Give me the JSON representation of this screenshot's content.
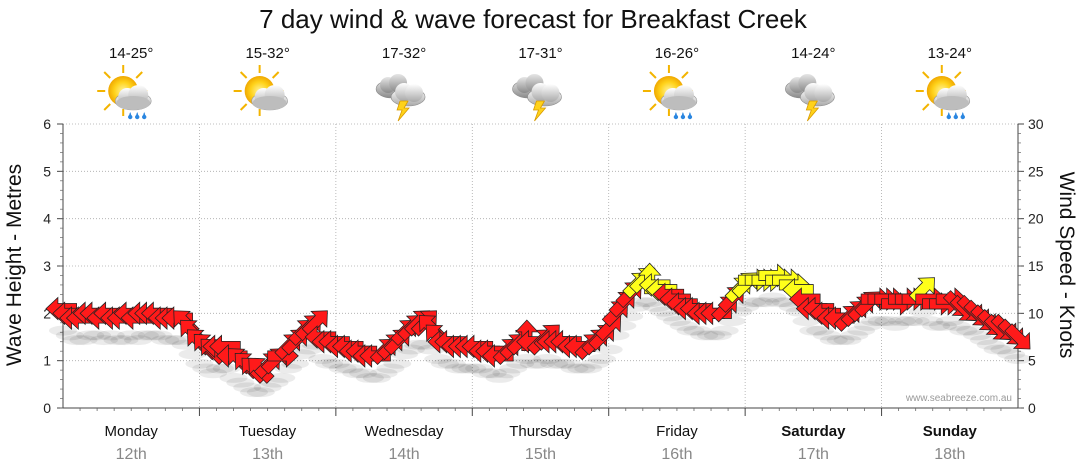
{
  "title": "7 day wind & wave forecast for Breakfast Creek",
  "credit": "www.seabreeze.com.au",
  "colors": {
    "arrow_low": "#ff1a1a",
    "arrow_high": "#ffff1a",
    "grid": "#aaaaaa",
    "date_text": "#888888"
  },
  "days": [
    {
      "name": "Monday",
      "date": "12th",
      "temp": "14-25°",
      "icon": "sun-cloud-rain-icon",
      "bold": false
    },
    {
      "name": "Tuesday",
      "date": "13th",
      "temp": "15-32°",
      "icon": "sun-cloud-icon",
      "bold": false
    },
    {
      "name": "Wednesday",
      "date": "14th",
      "temp": "17-32°",
      "icon": "thunderstorm-icon",
      "bold": false
    },
    {
      "name": "Thursday",
      "date": "15th",
      "temp": "17-31°",
      "icon": "thunderstorm-icon",
      "bold": false
    },
    {
      "name": "Friday",
      "date": "16th",
      "temp": "16-26°",
      "icon": "sun-cloud-rain-icon",
      "bold": false
    },
    {
      "name": "Saturday",
      "date": "17th",
      "temp": "14-24°",
      "icon": "thunderstorm-icon",
      "bold": true
    },
    {
      "name": "Sunday",
      "date": "18th",
      "temp": "13-24°",
      "icon": "sun-cloud-rain-icon",
      "bold": true
    }
  ],
  "chart_data": {
    "type": "line",
    "title": "7 day wind & wave forecast for Breakfast Creek",
    "left_axis": {
      "label": "Wave Height - Metres",
      "range": [
        0,
        6
      ],
      "ticks": [
        0,
        1,
        2,
        3,
        4,
        5,
        6
      ]
    },
    "right_axis": {
      "label": "Wind Speed - Knots",
      "range": [
        0,
        30
      ],
      "ticks": [
        0,
        5,
        10,
        15,
        20,
        25,
        30
      ]
    },
    "x_categories": [
      "Monday 12th",
      "Tuesday 13th",
      "Wednesday 14th",
      "Thursday 15th",
      "Friday 16th",
      "Saturday 17th",
      "Sunday 18th"
    ],
    "grid": true,
    "series": [
      {
        "encoding": "wind arrows: position = wind speed (knots, right axis), arrow = direction, colour = strength",
        "points": [
          {
            "day": 0.0,
            "knots": 10.5,
            "toward": "W"
          },
          {
            "day": 0.05,
            "knots": 10.0,
            "toward": "W"
          },
          {
            "day": 0.1,
            "knots": 9.5,
            "toward": "W"
          },
          {
            "day": 0.15,
            "knots": 9.5,
            "toward": "W"
          },
          {
            "day": 0.2,
            "knots": 10.0,
            "toward": "W"
          },
          {
            "day": 0.25,
            "knots": 10.0,
            "toward": "W"
          },
          {
            "day": 0.3,
            "knots": 9.5,
            "toward": "W"
          },
          {
            "day": 0.35,
            "knots": 10.0,
            "toward": "W"
          },
          {
            "day": 0.4,
            "knots": 9.5,
            "toward": "W"
          },
          {
            "day": 0.45,
            "knots": 9.5,
            "toward": "W"
          },
          {
            "day": 0.5,
            "knots": 10.0,
            "toward": "W"
          },
          {
            "day": 0.55,
            "knots": 9.5,
            "toward": "W"
          },
          {
            "day": 0.6,
            "knots": 10.0,
            "toward": "W"
          },
          {
            "day": 0.65,
            "knots": 10.0,
            "toward": "W"
          },
          {
            "day": 0.7,
            "knots": 10.0,
            "toward": "W"
          },
          {
            "day": 0.75,
            "knots": 9.5,
            "toward": "W"
          },
          {
            "day": 0.8,
            "knots": 9.5,
            "toward": "W"
          },
          {
            "day": 0.85,
            "knots": 9.5,
            "toward": "W"
          },
          {
            "day": 0.9,
            "knots": 9.0,
            "toward": "NW"
          },
          {
            "day": 0.95,
            "knots": 8.0,
            "toward": "NW"
          },
          {
            "day": 1.0,
            "knots": 7.0,
            "toward": "NW"
          },
          {
            "day": 1.05,
            "knots": 6.5,
            "toward": "NW"
          },
          {
            "day": 1.1,
            "knots": 6.0,
            "toward": "NW"
          },
          {
            "day": 1.15,
            "knots": 6.5,
            "toward": "W"
          },
          {
            "day": 1.2,
            "knots": 6.5,
            "toward": "W"
          },
          {
            "day": 1.25,
            "knots": 5.5,
            "toward": "W"
          },
          {
            "day": 1.3,
            "knots": 5.0,
            "toward": "NW"
          },
          {
            "day": 1.35,
            "knots": 4.5,
            "toward": "NW"
          },
          {
            "day": 1.4,
            "knots": 4.0,
            "toward": "NW"
          },
          {
            "day": 1.45,
            "knots": 4.0,
            "toward": "NW"
          },
          {
            "day": 1.5,
            "knots": 4.5,
            "toward": "NE"
          },
          {
            "day": 1.55,
            "knots": 5.0,
            "toward": "NE"
          },
          {
            "day": 1.6,
            "knots": 5.5,
            "toward": "E"
          },
          {
            "day": 1.65,
            "knots": 6.5,
            "toward": "NE"
          },
          {
            "day": 1.7,
            "knots": 7.0,
            "toward": "NE"
          },
          {
            "day": 1.75,
            "knots": 8.0,
            "toward": "NE"
          },
          {
            "day": 1.8,
            "knots": 8.5,
            "toward": "NE"
          },
          {
            "day": 1.85,
            "knots": 9.0,
            "toward": "NE"
          },
          {
            "day": 1.9,
            "knots": 7.5,
            "toward": "W"
          },
          {
            "day": 1.95,
            "knots": 7.0,
            "toward": "W"
          },
          {
            "day": 2.0,
            "knots": 7.0,
            "toward": "W"
          },
          {
            "day": 2.05,
            "knots": 6.5,
            "toward": "W"
          },
          {
            "day": 2.1,
            "knots": 6.5,
            "toward": "W"
          },
          {
            "day": 2.15,
            "knots": 6.0,
            "toward": "W"
          },
          {
            "day": 2.2,
            "knots": 6.0,
            "toward": "W"
          },
          {
            "day": 2.25,
            "knots": 5.5,
            "toward": "W"
          },
          {
            "day": 2.3,
            "knots": 5.5,
            "toward": "W"
          },
          {
            "day": 2.35,
            "knots": 6.0,
            "toward": "NE"
          },
          {
            "day": 2.4,
            "knots": 6.5,
            "toward": "NE"
          },
          {
            "day": 2.45,
            "knots": 7.0,
            "toward": "NE"
          },
          {
            "day": 2.5,
            "knots": 8.0,
            "toward": "NE"
          },
          {
            "day": 2.55,
            "knots": 8.5,
            "toward": "NE"
          },
          {
            "day": 2.6,
            "knots": 9.0,
            "toward": "NE"
          },
          {
            "day": 2.65,
            "knots": 9.0,
            "toward": "NE"
          },
          {
            "day": 2.7,
            "knots": 8.5,
            "toward": "NW"
          },
          {
            "day": 2.75,
            "knots": 7.5,
            "toward": "NW"
          },
          {
            "day": 2.8,
            "knots": 7.0,
            "toward": "W"
          },
          {
            "day": 2.85,
            "knots": 7.0,
            "toward": "W"
          },
          {
            "day": 2.9,
            "knots": 6.5,
            "toward": "W"
          },
          {
            "day": 2.95,
            "knots": 6.5,
            "toward": "W"
          },
          {
            "day": 3.0,
            "knots": 6.5,
            "toward": "W"
          },
          {
            "day": 3.05,
            "knots": 6.5,
            "toward": "W"
          },
          {
            "day": 3.1,
            "knots": 6.0,
            "toward": "W"
          },
          {
            "day": 3.15,
            "knots": 6.0,
            "toward": "W"
          },
          {
            "day": 3.2,
            "knots": 5.5,
            "toward": "W"
          },
          {
            "day": 3.25,
            "knots": 6.0,
            "toward": "NE"
          },
          {
            "day": 3.3,
            "knots": 6.5,
            "toward": "NE"
          },
          {
            "day": 3.35,
            "knots": 7.0,
            "toward": "NE"
          },
          {
            "day": 3.4,
            "knots": 7.5,
            "toward": "N"
          },
          {
            "day": 3.45,
            "knots": 7.0,
            "toward": "W"
          },
          {
            "day": 3.5,
            "knots": 7.0,
            "toward": "NE"
          },
          {
            "day": 3.55,
            "knots": 7.5,
            "toward": "NE"
          },
          {
            "day": 3.6,
            "knots": 7.0,
            "toward": "W"
          },
          {
            "day": 3.65,
            "knots": 7.0,
            "toward": "W"
          },
          {
            "day": 3.7,
            "knots": 7.0,
            "toward": "W"
          },
          {
            "day": 3.75,
            "knots": 6.5,
            "toward": "W"
          },
          {
            "day": 3.8,
            "knots": 6.5,
            "toward": "W"
          },
          {
            "day": 3.85,
            "knots": 6.5,
            "toward": "NE"
          },
          {
            "day": 3.9,
            "knots": 7.0,
            "toward": "NE"
          },
          {
            "day": 3.95,
            "knots": 7.5,
            "toward": "NE"
          },
          {
            "day": 4.0,
            "knots": 8.5,
            "toward": "NE"
          },
          {
            "day": 4.05,
            "knots": 10.0,
            "toward": "NE"
          },
          {
            "day": 4.1,
            "knots": 11.0,
            "toward": "NE"
          },
          {
            "day": 4.15,
            "knots": 12.0,
            "toward": "NE"
          },
          {
            "day": 4.2,
            "knots": 13.0,
            "toward": "NE"
          },
          {
            "day": 4.25,
            "knots": 13.5,
            "toward": "NE"
          },
          {
            "day": 4.3,
            "knots": 13.5,
            "toward": "N"
          },
          {
            "day": 4.35,
            "knots": 13.0,
            "toward": "W"
          },
          {
            "day": 4.4,
            "knots": 12.5,
            "toward": "W"
          },
          {
            "day": 4.45,
            "knots": 12.0,
            "toward": "W"
          },
          {
            "day": 4.5,
            "knots": 11.5,
            "toward": "W"
          },
          {
            "day": 4.55,
            "knots": 11.0,
            "toward": "W"
          },
          {
            "day": 4.6,
            "knots": 10.5,
            "toward": "W"
          },
          {
            "day": 4.65,
            "knots": 10.5,
            "toward": "W"
          },
          {
            "day": 4.7,
            "knots": 10.0,
            "toward": "W"
          },
          {
            "day": 4.75,
            "knots": 10.0,
            "toward": "W"
          },
          {
            "day": 4.8,
            "knots": 10.0,
            "toward": "W"
          },
          {
            "day": 4.85,
            "knots": 10.5,
            "toward": "NE"
          },
          {
            "day": 4.9,
            "knots": 11.5,
            "toward": "NE"
          },
          {
            "day": 4.95,
            "knots": 12.5,
            "toward": "NE"
          },
          {
            "day": 5.0,
            "knots": 13.0,
            "toward": "NE"
          },
          {
            "day": 5.05,
            "knots": 13.5,
            "toward": "E"
          },
          {
            "day": 5.1,
            "knots": 13.5,
            "toward": "E"
          },
          {
            "day": 5.15,
            "knots": 13.5,
            "toward": "E"
          },
          {
            "day": 5.2,
            "knots": 14.0,
            "toward": "E"
          },
          {
            "day": 5.25,
            "knots": 13.5,
            "toward": "E"
          },
          {
            "day": 5.3,
            "knots": 13.5,
            "toward": "E"
          },
          {
            "day": 5.35,
            "knots": 13.0,
            "toward": "E"
          },
          {
            "day": 5.4,
            "knots": 12.5,
            "toward": "W"
          },
          {
            "day": 5.45,
            "knots": 11.5,
            "toward": "W"
          },
          {
            "day": 5.5,
            "knots": 10.5,
            "toward": "W"
          },
          {
            "day": 5.55,
            "knots": 10.5,
            "toward": "W"
          },
          {
            "day": 5.6,
            "knots": 10.0,
            "toward": "W"
          },
          {
            "day": 5.65,
            "knots": 9.5,
            "toward": "W"
          },
          {
            "day": 5.7,
            "knots": 9.5,
            "toward": "W"
          },
          {
            "day": 5.75,
            "knots": 9.5,
            "toward": "NE"
          },
          {
            "day": 5.8,
            "knots": 10.0,
            "toward": "NE"
          },
          {
            "day": 5.85,
            "knots": 10.5,
            "toward": "NE"
          },
          {
            "day": 5.9,
            "knots": 11.0,
            "toward": "NE"
          },
          {
            "day": 5.95,
            "knots": 11.5,
            "toward": "E"
          },
          {
            "day": 6.0,
            "knots": 11.5,
            "toward": "E"
          },
          {
            "day": 6.05,
            "knots": 11.5,
            "toward": "E"
          },
          {
            "day": 6.1,
            "knots": 11.0,
            "toward": "E"
          },
          {
            "day": 6.15,
            "knots": 11.5,
            "toward": "E"
          },
          {
            "day": 6.2,
            "knots": 11.5,
            "toward": "E"
          },
          {
            "day": 6.25,
            "knots": 11.5,
            "toward": "E"
          },
          {
            "day": 6.3,
            "knots": 12.5,
            "toward": "NE"
          },
          {
            "day": 6.35,
            "knots": 11.5,
            "toward": "E"
          },
          {
            "day": 6.4,
            "knots": 11.0,
            "toward": "E"
          },
          {
            "day": 6.45,
            "knots": 11.0,
            "toward": "E"
          },
          {
            "day": 6.5,
            "knots": 11.5,
            "toward": "E"
          },
          {
            "day": 6.55,
            "knots": 11.0,
            "toward": "SE"
          },
          {
            "day": 6.6,
            "knots": 10.5,
            "toward": "SE"
          },
          {
            "day": 6.65,
            "knots": 10.5,
            "toward": "SE"
          },
          {
            "day": 6.7,
            "knots": 10.0,
            "toward": "SE"
          },
          {
            "day": 6.75,
            "knots": 9.5,
            "toward": "SE"
          },
          {
            "day": 6.8,
            "knots": 9.0,
            "toward": "SE"
          },
          {
            "day": 6.85,
            "knots": 8.5,
            "toward": "SE"
          },
          {
            "day": 6.9,
            "knots": 8.5,
            "toward": "SE"
          },
          {
            "day": 6.95,
            "knots": 8.0,
            "toward": "SE"
          },
          {
            "day": 7.0,
            "knots": 7.5,
            "toward": "SE"
          }
        ],
        "strong_threshold_knots": 12.5
      }
    ]
  }
}
